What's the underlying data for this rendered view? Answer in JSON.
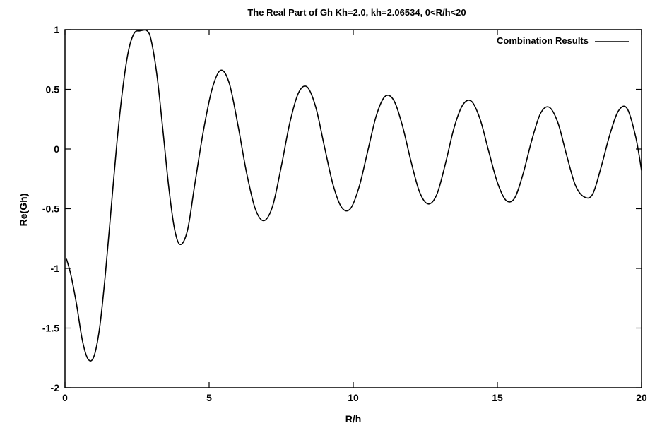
{
  "chart_data": {
    "type": "line",
    "title": "The Real Part of Gh  Kh=2.0, kh=2.06534, 0<R/h<20",
    "xlabel": "R/h",
    "ylabel": "Re(Gh)",
    "xlim": [
      0,
      20
    ],
    "ylim": [
      -2,
      1
    ],
    "x_ticks": [
      0,
      5,
      10,
      15,
      20
    ],
    "y_ticks": [
      1,
      0.5,
      0,
      -0.5,
      -1,
      -1.5,
      -2
    ],
    "x_tick_labels": [
      "0",
      "5",
      "10",
      "15",
      "20"
    ],
    "y_tick_labels": [
      "1",
      "0.5",
      "0",
      "-0.5",
      "-1",
      "-1.5",
      "-2"
    ],
    "grid": false,
    "legend_position": "top-right",
    "series": [
      {
        "name": "Combination Results",
        "color": "#000000",
        "x": [
          0.05,
          0.2,
          0.4,
          0.6,
          0.8,
          1.0,
          1.2,
          1.4,
          1.6,
          1.8,
          2.0,
          2.2,
          2.4,
          2.6,
          2.85,
          3.0,
          3.2,
          3.4,
          3.6,
          3.8,
          4.0,
          4.25,
          4.5,
          4.8,
          5.1,
          5.4,
          5.7,
          6.0,
          6.3,
          6.6,
          6.9,
          7.2,
          7.5,
          7.8,
          8.1,
          8.4,
          8.7,
          9.0,
          9.3,
          9.6,
          9.9,
          10.2,
          10.5,
          10.8,
          11.1,
          11.4,
          11.7,
          12.0,
          12.3,
          12.6,
          12.9,
          13.2,
          13.5,
          13.8,
          14.1,
          14.4,
          14.7,
          15.0,
          15.3,
          15.6,
          15.9,
          16.2,
          16.5,
          16.8,
          17.1,
          17.4,
          17.7,
          18.0,
          18.3,
          18.6,
          18.9,
          19.2,
          19.5,
          19.8,
          20.0
        ],
        "y": [
          -0.92,
          -1.05,
          -1.3,
          -1.6,
          -1.76,
          -1.74,
          -1.5,
          -1.05,
          -0.5,
          0.05,
          0.5,
          0.82,
          0.97,
          0.99,
          0.99,
          0.9,
          0.6,
          0.15,
          -0.32,
          -0.67,
          -0.8,
          -0.68,
          -0.3,
          0.15,
          0.5,
          0.66,
          0.55,
          0.2,
          -0.2,
          -0.5,
          -0.6,
          -0.48,
          -0.15,
          0.22,
          0.47,
          0.52,
          0.35,
          0.02,
          -0.3,
          -0.49,
          -0.5,
          -0.32,
          -0.02,
          0.28,
          0.44,
          0.41,
          0.2,
          -0.1,
          -0.36,
          -0.46,
          -0.38,
          -0.12,
          0.18,
          0.37,
          0.4,
          0.25,
          -0.02,
          -0.28,
          -0.43,
          -0.41,
          -0.2,
          0.08,
          0.3,
          0.35,
          0.22,
          -0.05,
          -0.3,
          -0.4,
          -0.38,
          -0.15,
          0.12,
          0.32,
          0.34,
          0.1,
          -0.18
        ]
      }
    ]
  }
}
